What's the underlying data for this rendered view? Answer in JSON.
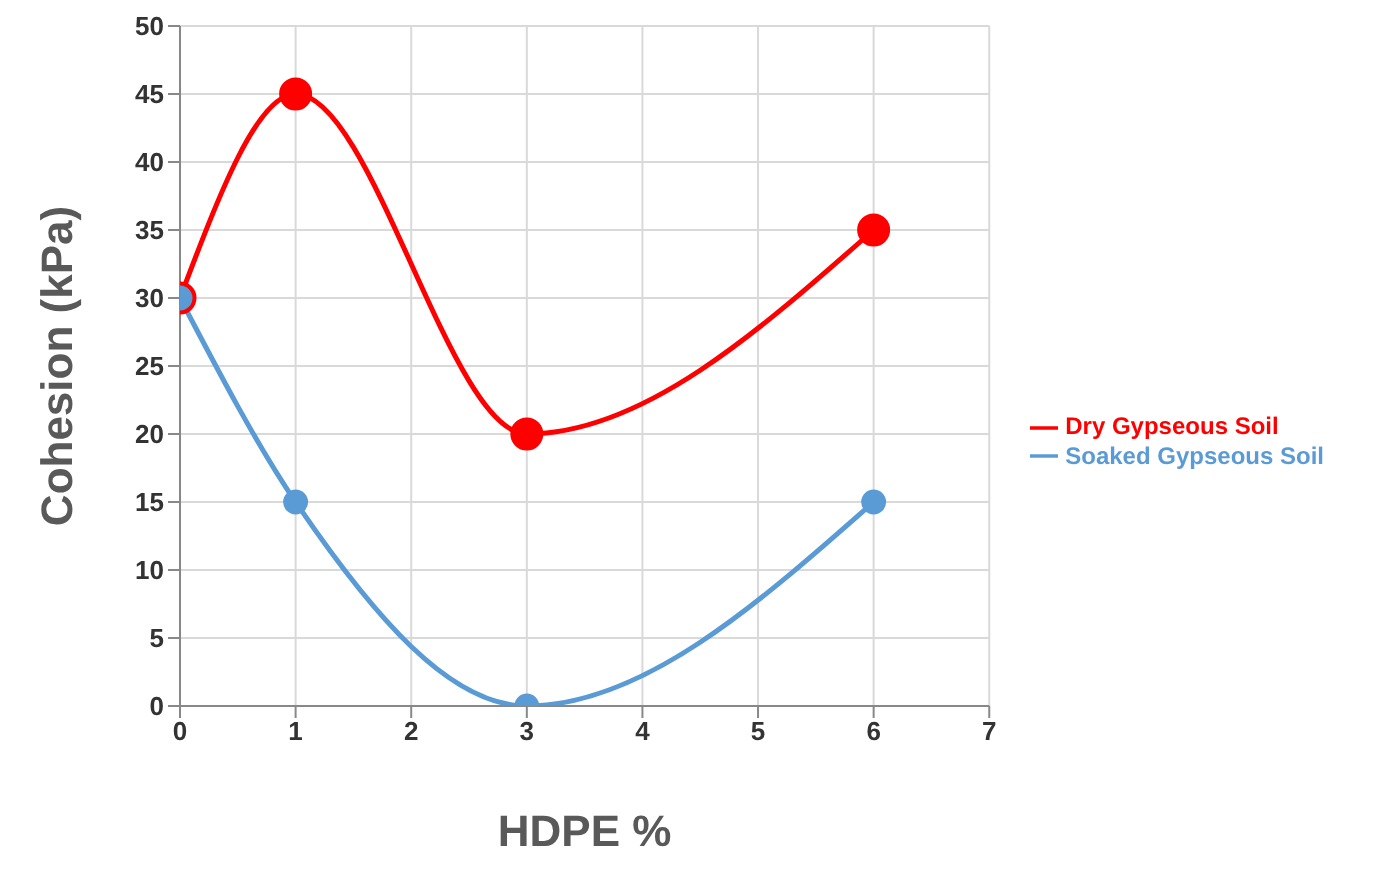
{
  "chart_data": {
    "type": "line",
    "xlabel": "HDPE %",
    "ylabel": "Cohesion (kPa)",
    "series": [
      {
        "name": "Dry Gypseous Soil",
        "color": "#ff0000",
        "x": [
          0,
          1,
          3,
          6
        ],
        "values": [
          30,
          45,
          20,
          35
        ]
      },
      {
        "name": "Soaked Gypseous Soil",
        "color": "#5b9bd5",
        "x": [
          0,
          1,
          3,
          6
        ],
        "values": [
          30,
          15,
          0,
          15
        ]
      }
    ],
    "xlim": [
      0,
      7
    ],
    "xticks": [
      0,
      1,
      2,
      3,
      4,
      5,
      6,
      7
    ],
    "ylim": [
      0,
      50
    ],
    "yticks": [
      0,
      5,
      10,
      15,
      20,
      25,
      30,
      35,
      40,
      45,
      50
    ],
    "grid": true,
    "legend": "right",
    "marker": "circle",
    "line_style": "solid"
  }
}
